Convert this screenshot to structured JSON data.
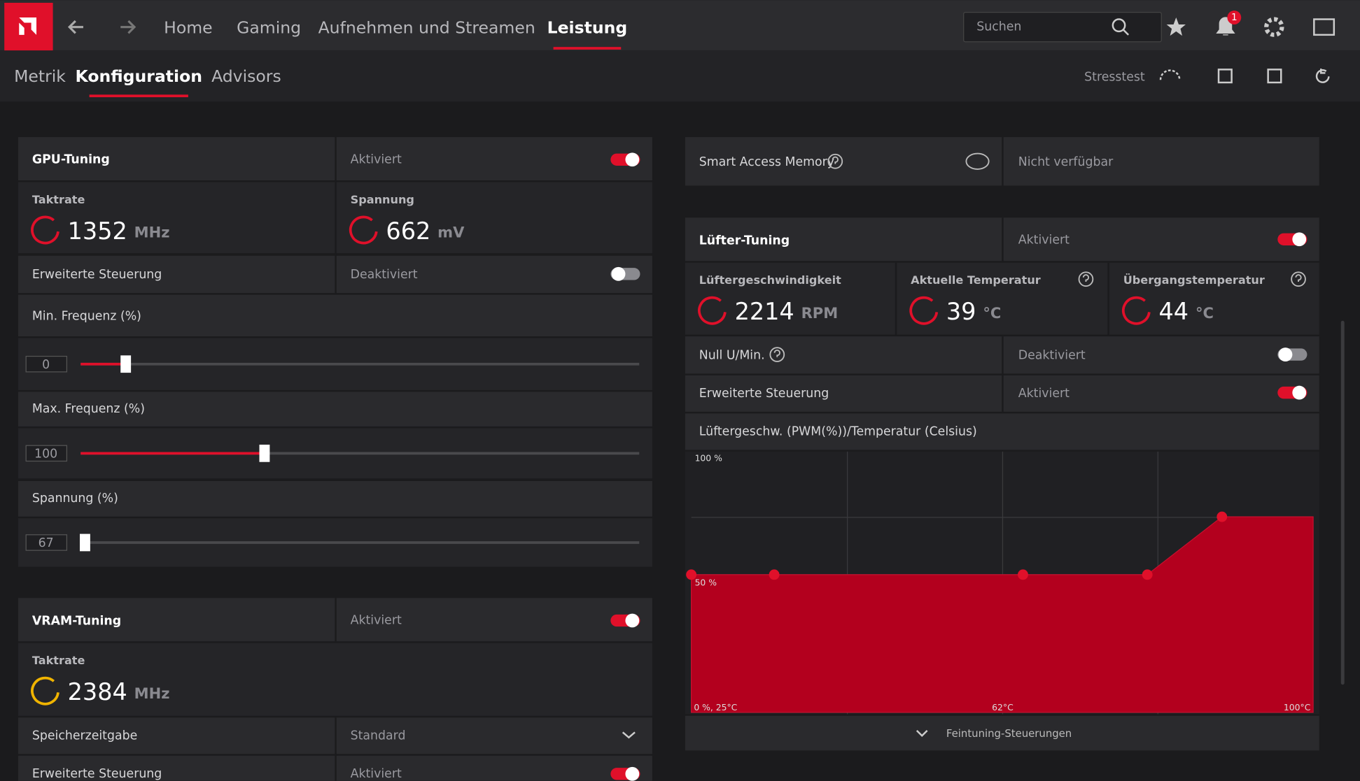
{
  "tabs": [
    "Home",
    "Gaming",
    "Aufnehmen und Streamen",
    "Leistung"
  ],
  "search_placeholder": "Suchen",
  "notification_count": 1,
  "subtabs": [
    "Metrik",
    "Konfiguration",
    "Advisors"
  ],
  "stresstest": "Stresstest",
  "gpu_tuning": {
    "title": "GPU-Tuning",
    "status": "Aktiviert",
    "clock": {
      "label": "Taktrate",
      "value": 1352,
      "unit": "MHz"
    },
    "voltage": {
      "label": "Spannung",
      "value": 662,
      "unit": "mV"
    },
    "advanced": {
      "label": "Erweiterte Steuerung",
      "status": "Deaktiviert"
    },
    "min_freq": {
      "label": "Min. Frequenz (%)",
      "value": 0
    },
    "max_freq": {
      "label": "Max. Frequenz (%)",
      "value": 100
    },
    "voltage_pct": {
      "label": "Spannung (%)",
      "value": 67
    }
  },
  "vram_tuning": {
    "title": "VRAM-Tuning",
    "status": "Aktiviert",
    "clock": {
      "label": "Taktrate",
      "value": 2384,
      "unit": "MHz"
    },
    "timing": {
      "label": "Speicherzeitgabe",
      "value": "Standard"
    },
    "advanced": {
      "label": "Erweiterte Steuerung",
      "status": "Aktiviert"
    }
  },
  "sam": {
    "label": "Smart Access Memory",
    "status": "Nicht verfügbar"
  },
  "fan_tuning": {
    "title": "Lüfter-Tuning",
    "status": "Aktiviert",
    "fan_speed": {
      "label": "Lüftergeschwindigkeit",
      "value": 2214,
      "unit": "RPM"
    },
    "current_temp": {
      "label": "Aktuelle Temperatur",
      "value": 39,
      "unit": "°C"
    },
    "junction_temp": {
      "label": "Übergangstemperatur",
      "value": 44,
      "unit": "°C"
    },
    "zero_rpm": {
      "label": "Null U/Min.",
      "status": "Deaktiviert"
    },
    "advanced": {
      "label": "Erweiterte Steuerung",
      "status": "Aktiviert"
    },
    "curve": {
      "title": "Lüftergeschw. (PWM(%))/Temperatur (Celsius)",
      "temps": [
        25,
        35,
        65,
        80,
        89
      ],
      "pwm": [
        50,
        50,
        50,
        50,
        71
      ],
      "xlim": [
        25,
        100
      ],
      "ylim": [
        0,
        100
      ],
      "label_top": "100 %",
      "label_mid": "50 %",
      "label_origin": "0 %, 25°C",
      "label_x_mid": "62°C",
      "label_x_end": "100°C"
    },
    "fine_tuning": "Feintuning-Steuerungen"
  }
}
